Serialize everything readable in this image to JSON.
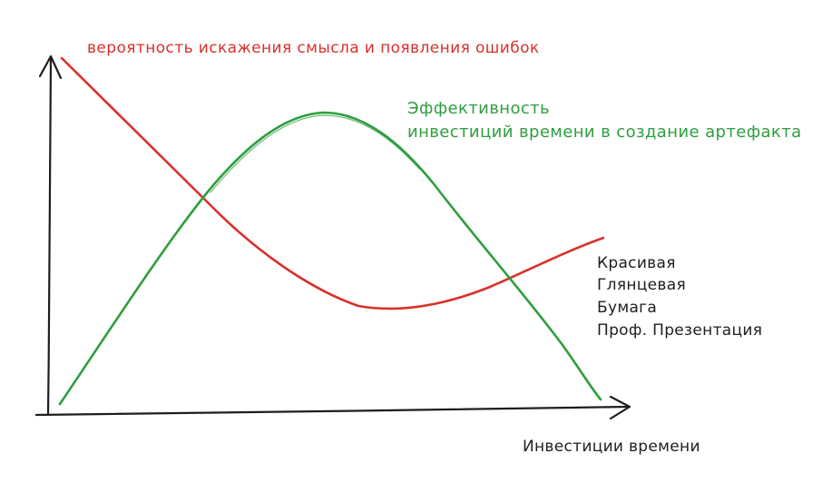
{
  "colors": {
    "background": "#ffffff",
    "axes": "#1e1e1e",
    "error_curve": "#d9312b",
    "efficiency_curve": "#2e9e3f",
    "text": "#1e1e1e"
  },
  "labels": {
    "error_probability": "вероятность искажения смысла и появления ошибок",
    "efficiency_line1": "Эффективность",
    "efficiency_line2": "инвестиций времени в создание артефакта",
    "stack_line1": "Красивая",
    "stack_line2": "Глянцевая",
    "stack_line3": "Бумага",
    "stack_line4": "Проф. Презентация",
    "x_axis": "Инвестиции времени"
  }
}
